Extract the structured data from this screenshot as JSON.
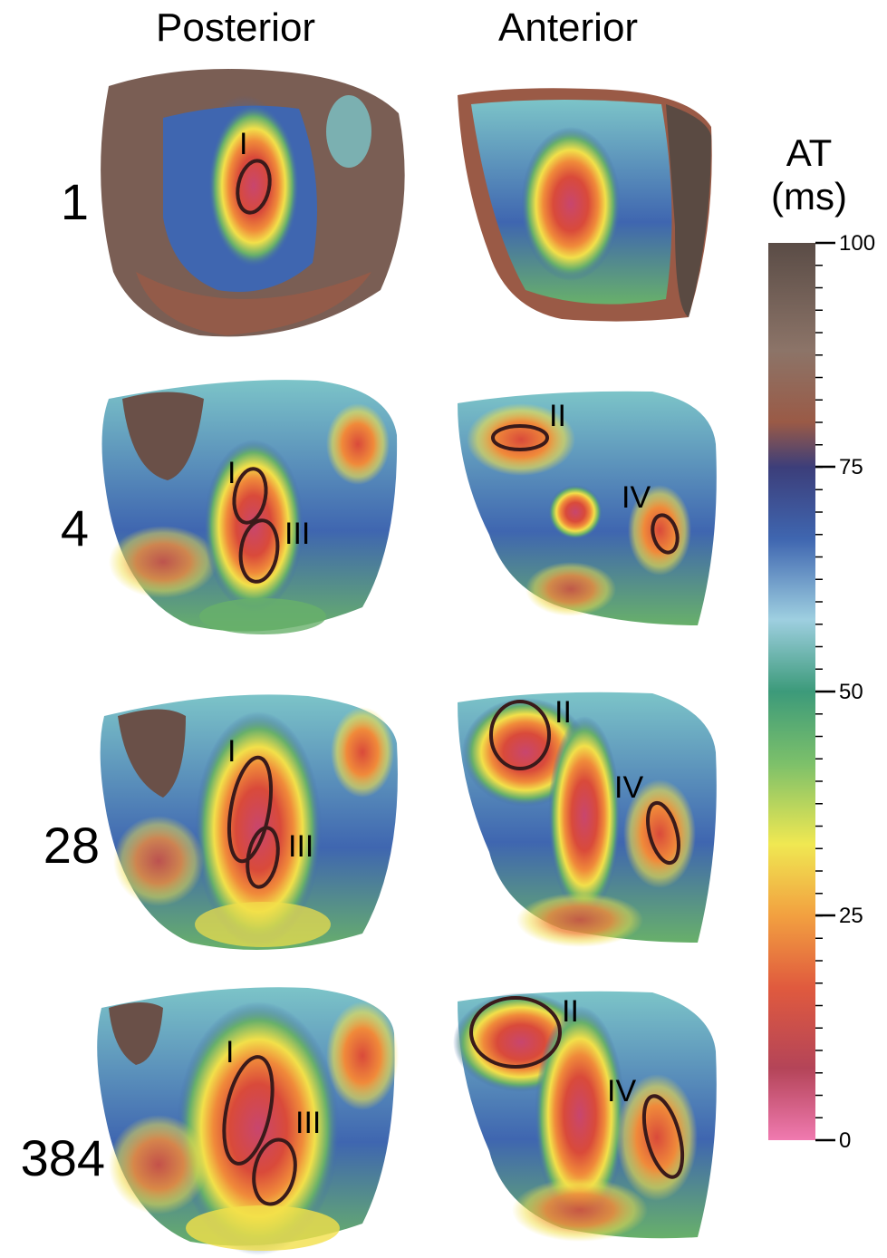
{
  "columns": {
    "posterior": "Posterior",
    "anterior": "Anterior"
  },
  "rows": [
    "1",
    "4",
    "28",
    "384"
  ],
  "colorbar": {
    "title_line1": "AT",
    "title_line2": "(ms)",
    "ticks": [
      "100",
      "75",
      "50",
      "25",
      "0"
    ],
    "range": [
      0,
      100
    ]
  },
  "regions": {
    "I": "I",
    "II": "II",
    "III": "III",
    "IV": "IV"
  },
  "colors": {
    "late": "#5a4a42",
    "brown": "#9a5a46",
    "blue": "#3f66b0",
    "cyan": "#7cc4c8",
    "green": "#68b06a",
    "yellow": "#f2e04a",
    "orange": "#f08a3a",
    "red": "#d94a3a",
    "early": "#c8466e"
  }
}
